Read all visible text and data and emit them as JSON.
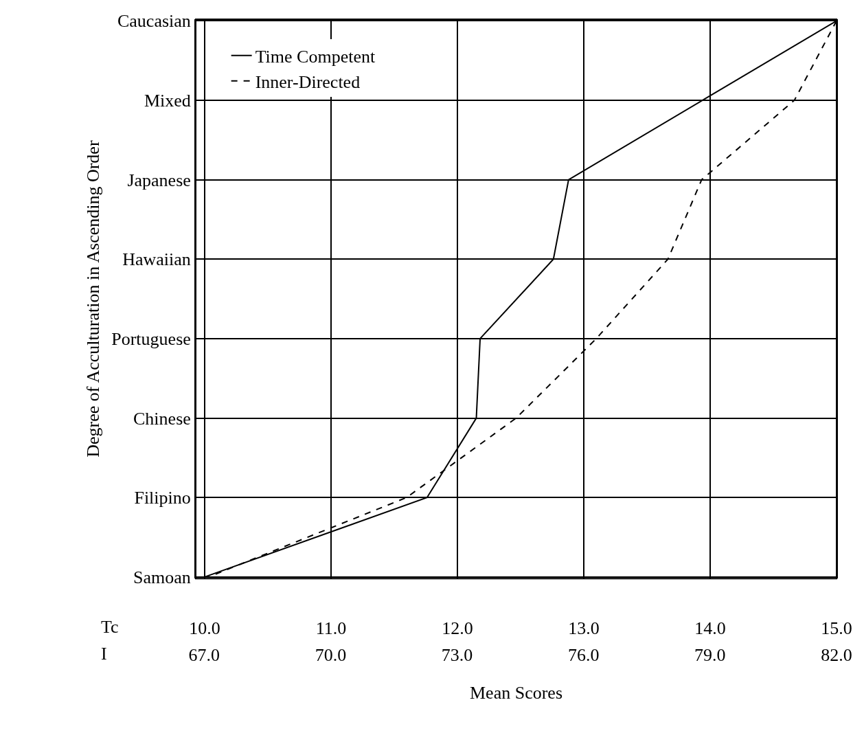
{
  "chart_data": {
    "type": "line",
    "xlabel": "Mean Scores",
    "ylabel": "Degree of Acculturation in Ascending Order",
    "categories": [
      "Caucasian",
      "Mixed",
      "Japanese",
      "Hawaiian",
      "Portuguese",
      "Chinese",
      "Filipino",
      "Samoan"
    ],
    "series": [
      {
        "name": "Time Competent",
        "color": "#000000",
        "line_style": "solid",
        "values": [
          15.0,
          13.94,
          12.88,
          12.76,
          12.18,
          12.15,
          11.76,
          10.0
        ]
      },
      {
        "name": "Inner-Directed",
        "color": "#000000",
        "line_style": "dashed",
        "axis": "x2",
        "values": [
          82.0,
          81.0,
          78.8,
          78.0,
          76.3,
          74.4,
          71.8,
          67.1
        ]
      }
    ],
    "xlim": [
      9.93,
      15.0
    ],
    "xticks": [
      {
        "value": 10,
        "label": "10.0"
      },
      {
        "value": 11,
        "label": "11.0"
      },
      {
        "value": 12,
        "label": "12.0"
      },
      {
        "value": 13,
        "label": "13.0"
      },
      {
        "value": 14,
        "label": "14.0"
      },
      {
        "value": 15,
        "label": "15.0"
      }
    ],
    "x2lim": [
      66.8,
      82.0
    ],
    "x2ticks": [
      {
        "value": 67,
        "label": "67.0"
      },
      {
        "value": 70,
        "label": "70.0"
      },
      {
        "value": 73,
        "label": "73.0"
      },
      {
        "value": 76,
        "label": "76.0"
      },
      {
        "value": 79,
        "label": "79.0"
      },
      {
        "value": 82,
        "label": "82.0"
      }
    ],
    "annotations": [
      "Tc",
      "I"
    ],
    "grid": true,
    "legend": "top left",
    "marker": "none",
    "orientation": "horizontal"
  }
}
